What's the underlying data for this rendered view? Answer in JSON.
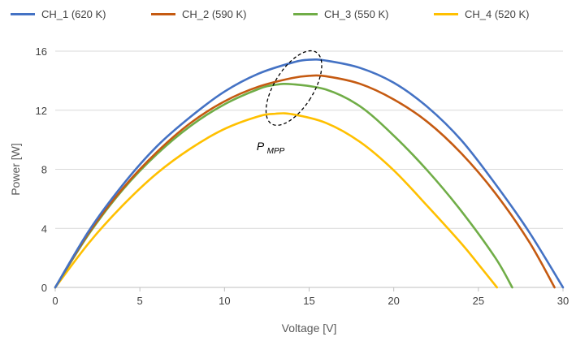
{
  "chart_data": {
    "type": "line",
    "title": "",
    "xlabel": "Voltage [V]",
    "ylabel": "Power [W]",
    "xlim": [
      0,
      30
    ],
    "ylim": [
      0,
      16
    ],
    "xticks": [
      0,
      5,
      10,
      15,
      20,
      25,
      30
    ],
    "yticks": [
      0,
      4,
      8,
      12,
      16
    ],
    "grid": "horizontal",
    "legend_position": "top",
    "series": [
      {
        "name": "CH_1 (620 K)",
        "color": "#4472C4",
        "x": [
          0,
          2,
          4,
          6,
          8,
          10,
          12,
          14,
          15,
          16,
          18,
          20,
          22,
          24,
          26,
          28,
          30
        ],
        "y": [
          0,
          3.85,
          6.96,
          9.55,
          11.56,
          13.26,
          14.47,
          15.22,
          15.42,
          15.36,
          14.87,
          13.86,
          12.21,
          9.96,
          7.01,
          3.75,
          0
        ]
      },
      {
        "name": "CH_2 (590 K)",
        "color": "#C55A11",
        "x": [
          0,
          2,
          4,
          6,
          8,
          10,
          12,
          14,
          15,
          16,
          18,
          20,
          22,
          24,
          26,
          28,
          29.5
        ],
        "y": [
          0,
          3.73,
          6.72,
          9.16,
          11.14,
          12.6,
          13.59,
          14.18,
          14.33,
          14.3,
          13.79,
          12.73,
          11.2,
          9.07,
          6.38,
          3.09,
          0
        ]
      },
      {
        "name": "CH_3 (550 K)",
        "color": "#70AD47",
        "x": [
          0,
          2,
          4,
          6,
          8,
          10,
          12,
          13,
          14,
          16,
          18,
          20,
          22,
          24,
          26,
          27
        ],
        "y": [
          0,
          3.64,
          6.63,
          9.02,
          10.94,
          12.4,
          13.43,
          13.72,
          13.76,
          13.4,
          12.27,
          10.28,
          7.9,
          5.16,
          2.01,
          0
        ]
      },
      {
        "name": "CH_4 (520 K)",
        "color": "#FFC000",
        "x": [
          0,
          2,
          4,
          6,
          8,
          10,
          12,
          13,
          14,
          16,
          18,
          20,
          22,
          24,
          25,
          26.1
        ],
        "y": [
          0,
          3.03,
          5.57,
          7.72,
          9.41,
          10.73,
          11.58,
          11.76,
          11.73,
          11.14,
          9.86,
          7.93,
          5.5,
          2.97,
          1.57,
          0
        ]
      }
    ],
    "annotations": [
      {
        "text_main": "P",
        "text_sub": "MPP"
      }
    ]
  }
}
